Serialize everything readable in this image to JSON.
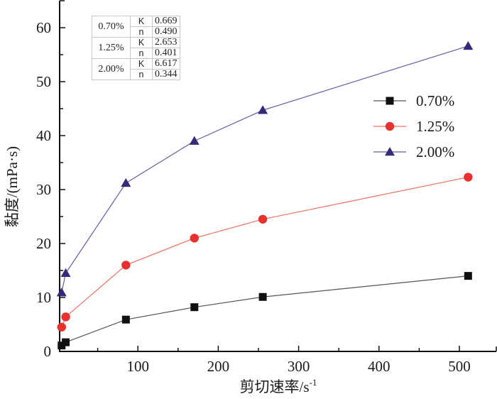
{
  "chart_data": {
    "type": "line",
    "title": "",
    "xlabel": "剪切速率/s",
    "xlabel_superscript": "-1",
    "ylabel": "黏度/(mPa·s)",
    "xlim": [
      0,
      550
    ],
    "ylim": [
      0,
      65
    ],
    "xticks": [
      100,
      200,
      300,
      400,
      500
    ],
    "xticks_minor": [
      50,
      150,
      250,
      350,
      450
    ],
    "yticks": [
      0,
      10,
      20,
      30,
      40,
      50,
      60
    ],
    "yticks_minor": [
      5,
      15,
      25,
      35,
      45,
      55
    ],
    "grid": false,
    "legend_position": "right",
    "x": [
      5.11,
      10.22,
      85.1,
      170.3,
      255.4,
      510.9
    ],
    "series": [
      {
        "name": "0.70%",
        "marker": "square",
        "color": "#111111",
        "line_color": "#555555",
        "values": [
          1.1,
          1.7,
          5.9,
          8.2,
          10.1,
          14.0
        ]
      },
      {
        "name": "1.25%",
        "marker": "circle",
        "color": "#e8302e",
        "line_color": "#f07060",
        "values": [
          4.5,
          6.4,
          16.0,
          21.0,
          24.5,
          32.3
        ]
      },
      {
        "name": "2.00%",
        "marker": "triangle",
        "color": "#35297a",
        "line_color": "#6a5aa8",
        "values": [
          10.9,
          14.5,
          31.2,
          39.0,
          44.7,
          56.6
        ]
      }
    ],
    "table": {
      "rows": [
        {
          "concentration": "0.70%",
          "K": "0.669",
          "n": "0.490"
        },
        {
          "concentration": "1.25%",
          "K": "2.653",
          "n": "0.401"
        },
        {
          "concentration": "2.00%",
          "K": "6.617",
          "n": "0.344"
        }
      ],
      "k_label": "K",
      "n_label": "n"
    }
  }
}
